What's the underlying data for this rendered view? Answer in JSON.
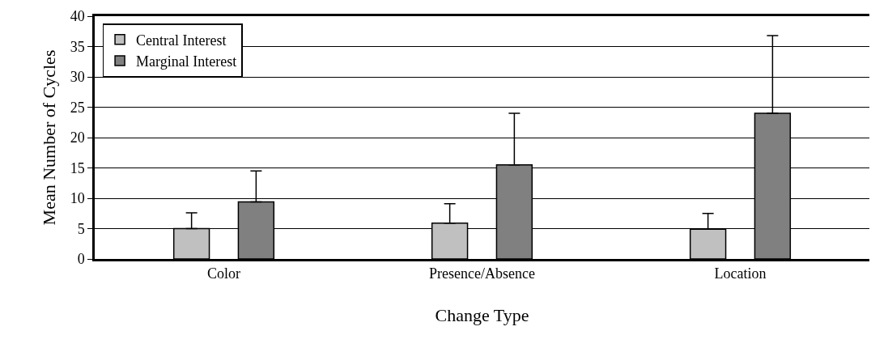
{
  "chart_data": {
    "type": "bar",
    "xlabel": "Change Type",
    "ylabel": "Mean Number of Cycles",
    "categories": [
      "Color",
      "Presence/Absence",
      "Location"
    ],
    "series": [
      {
        "name": "Central Interest",
        "color": "#c0c0c0",
        "values": [
          5.0,
          5.9,
          4.9
        ],
        "errors": [
          [
            5.0,
            7.6
          ],
          [
            5.9,
            9.1
          ],
          [
            4.9,
            7.5
          ]
        ]
      },
      {
        "name": "Marginal Interest",
        "color": "#808080",
        "values": [
          9.4,
          15.5,
          24.0
        ],
        "errors": [
          [
            9.4,
            14.5
          ],
          [
            15.5,
            24.0
          ],
          [
            24.0,
            36.8
          ]
        ]
      }
    ],
    "ylim": [
      0,
      40
    ],
    "yticks": [
      0,
      5,
      10,
      15,
      20,
      25,
      30,
      35,
      40
    ],
    "grid": "y",
    "legend": "top left"
  }
}
